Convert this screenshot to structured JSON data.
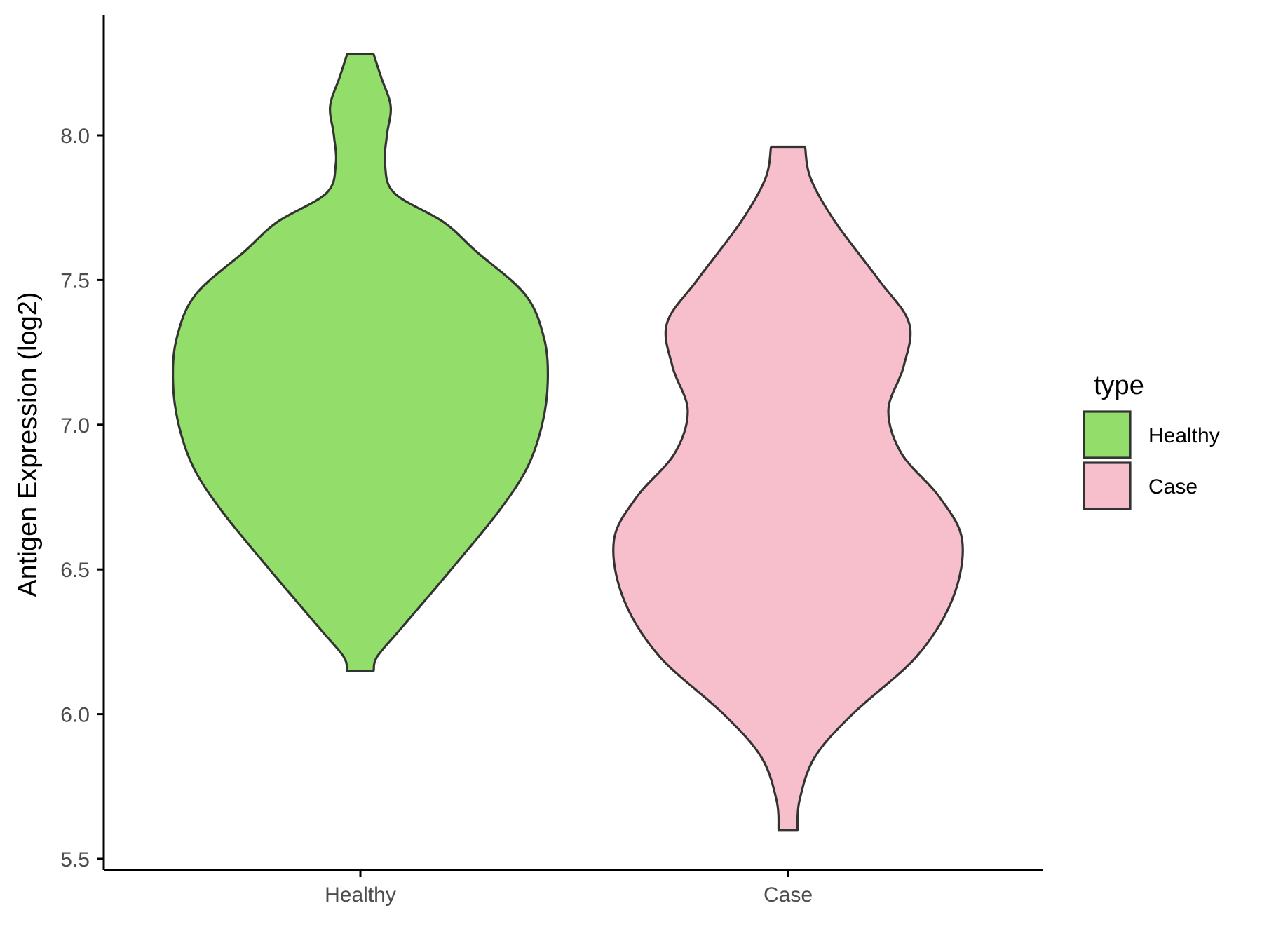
{
  "chart_data": {
    "type": "violin",
    "ylabel": "Antigen Expression (log2)",
    "xlabel": "",
    "ylim": [
      5.47,
      8.42
    ],
    "yticks": [
      "5.5",
      "6.0",
      "6.5",
      "7.0",
      "7.5",
      "8.0"
    ],
    "ytick_values": [
      5.5,
      6.0,
      6.5,
      7.0,
      7.5,
      8.0
    ],
    "categories": [
      "Healthy",
      "Case"
    ],
    "grid": false,
    "legend": {
      "title": "type",
      "position": "right",
      "entries": [
        {
          "label": "Healthy",
          "color": "#93dd6a"
        },
        {
          "label": "Case",
          "color": "#f7bfcb"
        }
      ]
    },
    "series": [
      {
        "category": "Healthy",
        "color": "#93dd6a",
        "min": 6.15,
        "max": 8.28,
        "density_profile": [
          [
            6.15,
            0.07
          ],
          [
            6.2,
            0.09
          ],
          [
            6.3,
            0.22
          ],
          [
            6.5,
            0.48
          ],
          [
            6.7,
            0.73
          ],
          [
            6.85,
            0.88
          ],
          [
            7.0,
            0.96
          ],
          [
            7.15,
            0.99
          ],
          [
            7.3,
            0.97
          ],
          [
            7.45,
            0.87
          ],
          [
            7.6,
            0.61
          ],
          [
            7.7,
            0.44
          ],
          [
            7.8,
            0.18
          ],
          [
            7.9,
            0.13
          ],
          [
            8.0,
            0.14
          ],
          [
            8.1,
            0.16
          ],
          [
            8.2,
            0.11
          ],
          [
            8.28,
            0.07
          ]
        ]
      },
      {
        "category": "Case",
        "color": "#f7bfcb",
        "min": 5.6,
        "max": 7.96,
        "density_profile": [
          [
            5.6,
            0.05
          ],
          [
            5.7,
            0.06
          ],
          [
            5.85,
            0.14
          ],
          [
            6.0,
            0.34
          ],
          [
            6.2,
            0.68
          ],
          [
            6.4,
            0.87
          ],
          [
            6.6,
            0.92
          ],
          [
            6.75,
            0.8
          ],
          [
            6.9,
            0.6
          ],
          [
            7.05,
            0.53
          ],
          [
            7.2,
            0.61
          ],
          [
            7.35,
            0.64
          ],
          [
            7.5,
            0.48
          ],
          [
            7.7,
            0.25
          ],
          [
            7.85,
            0.12
          ],
          [
            7.96,
            0.09
          ]
        ]
      }
    ]
  }
}
